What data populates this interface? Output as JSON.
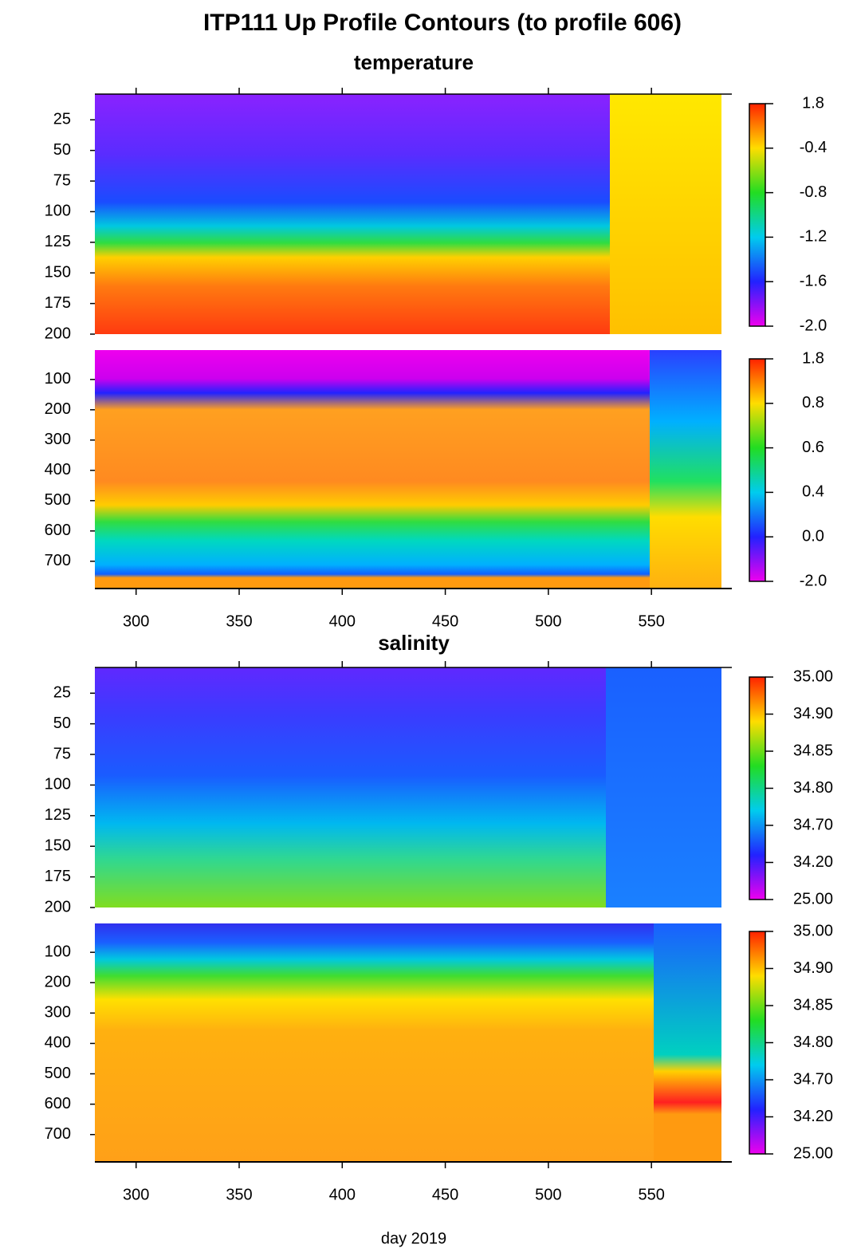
{
  "title": "ITP111 Up Profile Contours (to profile 606)",
  "xlabel": "day 2019",
  "chart_data": [
    {
      "type": "contour",
      "title": "temperature",
      "xlim": [
        280,
        589
      ],
      "ylim": [
        4,
        200
      ],
      "yticks": [
        25,
        50,
        75,
        100,
        125,
        150,
        175,
        200
      ],
      "colorbar_ticks": [
        {
          "value": -2.0,
          "label": "-2.0"
        },
        -1.6,
        -1.2,
        -0.8,
        -0.4,
        1.8
      ]
    },
    {
      "type": "contour",
      "xlim": [
        280,
        589
      ],
      "ylim": [
        3,
        790
      ],
      "yticks": [
        100,
        200,
        300,
        400,
        500,
        600,
        700
      ],
      "xticks": [
        300,
        350,
        400,
        450,
        500,
        550
      ],
      "colorbar_ticks": [
        {
          "value": -2.0,
          "label": "-2.0"
        },
        {
          "value": 0.0,
          "label": "0.0"
        },
        0.4,
        0.6,
        0.8,
        1.8
      ]
    },
    {
      "type": "contour",
      "title": "salinity",
      "xlim": [
        280,
        589
      ],
      "ylim": [
        4,
        200
      ],
      "yticks": [
        25,
        50,
        75,
        100,
        125,
        150,
        175,
        200
      ],
      "colorbar_ticks": [
        {
          "value": 25,
          "label": "25.00"
        },
        {
          "value": 34.2,
          "label": "34.20"
        },
        {
          "value": 34.7,
          "label": "34.70"
        },
        {
          "value": 34.8,
          "label": "34.80"
        },
        34.85,
        {
          "value": 34.9,
          "label": "34.90"
        },
        {
          "value": 35,
          "label": "35.00"
        }
      ]
    },
    {
      "type": "contour",
      "xlim": [
        280,
        589
      ],
      "ylim": [
        5,
        790
      ],
      "yticks": [
        100,
        200,
        300,
        400,
        500,
        600,
        700
      ],
      "xticks": [
        300,
        350,
        400,
        450,
        500,
        550
      ],
      "colorbar_ticks": [
        {
          "value": 25,
          "label": "25.00"
        },
        {
          "value": 34.2,
          "label": "34.20"
        },
        {
          "value": 34.7,
          "label": "34.70"
        },
        {
          "value": 34.8,
          "label": "34.80"
        },
        34.85,
        {
          "value": 34.9,
          "label": "34.90"
        },
        {
          "value": 35,
          "label": "35.00"
        }
      ]
    }
  ]
}
